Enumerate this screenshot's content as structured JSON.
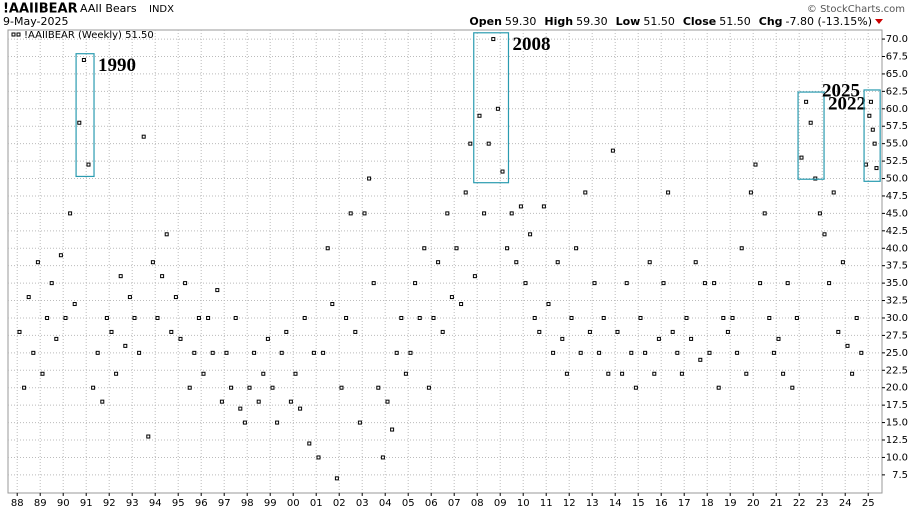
{
  "header": {
    "symbol": "!AAIIBEAR",
    "name": "AAII Bears",
    "exchange": "INDX",
    "date": "9-May-2025",
    "copyright": "© StockCharts.com",
    "quote": [
      {
        "label": "Open",
        "value": "59.30"
      },
      {
        "label": "High",
        "value": "59.30"
      },
      {
        "label": "Low",
        "value": "51.50"
      },
      {
        "label": "Close",
        "value": "51.50"
      },
      {
        "label": "Chg",
        "value": "-7.80 (-13.15%)"
      }
    ]
  },
  "chart_data": {
    "type": "scatter",
    "x": [
      1988.1,
      1988.3,
      1988.5,
      1988.7,
      1988.9,
      1989.1,
      1989.3,
      1989.5,
      1989.7,
      1989.9,
      1990.1,
      1990.3,
      1990.5,
      1990.7,
      1990.9,
      1991.1,
      1991.3,
      1991.5,
      1991.7,
      1991.9,
      1992.1,
      1992.3,
      1992.5,
      1992.7,
      1992.9,
      1993.1,
      1993.3,
      1993.5,
      1993.7,
      1993.9,
      1994.1,
      1994.3,
      1994.5,
      1994.7,
      1994.9,
      1995.1,
      1995.3,
      1995.5,
      1995.7,
      1995.9,
      1996.1,
      1996.3,
      1996.5,
      1996.7,
      1996.9,
      1997.1,
      1997.3,
      1997.5,
      1997.7,
      1997.9,
      1998.1,
      1998.3,
      1998.5,
      1998.7,
      1998.9,
      1999.1,
      1999.3,
      1999.5,
      1999.7,
      1999.9,
      2000.1,
      2000.3,
      2000.5,
      2000.7,
      2000.9,
      2001.1,
      2001.3,
      2001.5,
      2001.7,
      2001.9,
      2002.1,
      2002.3,
      2002.5,
      2002.7,
      2002.9,
      2003.1,
      2003.3,
      2003.5,
      2003.7,
      2003.9,
      2004.1,
      2004.3,
      2004.5,
      2004.7,
      2004.9,
      2005.1,
      2005.3,
      2005.5,
      2005.7,
      2005.9,
      2006.1,
      2006.3,
      2006.5,
      2006.7,
      2006.9,
      2007.1,
      2007.3,
      2007.5,
      2007.7,
      2007.9,
      2008.1,
      2008.3,
      2008.5,
      2008.7,
      2008.9,
      2009.1,
      2009.3,
      2009.5,
      2009.7,
      2009.9,
      2010.1,
      2010.3,
      2010.5,
      2010.7,
      2010.9,
      2011.1,
      2011.3,
      2011.5,
      2011.7,
      2011.9,
      2012.1,
      2012.3,
      2012.5,
      2012.7,
      2012.9,
      2013.1,
      2013.3,
      2013.5,
      2013.7,
      2013.9,
      2014.1,
      2014.3,
      2014.5,
      2014.7,
      2014.9,
      2015.1,
      2015.3,
      2015.5,
      2015.7,
      2015.9,
      2016.1,
      2016.3,
      2016.5,
      2016.7,
      2016.9,
      2017.1,
      2017.3,
      2017.5,
      2017.7,
      2017.9,
      2018.1,
      2018.3,
      2018.5,
      2018.7,
      2018.9,
      2019.1,
      2019.3,
      2019.5,
      2019.7,
      2019.9,
      2020.1,
      2020.3,
      2020.5,
      2020.7,
      2020.9,
      2021.1,
      2021.3,
      2021.5,
      2021.7,
      2021.9,
      2022.1,
      2022.3,
      2022.5,
      2022.7,
      2022.9,
      2023.1,
      2023.3,
      2023.5,
      2023.7,
      2023.9,
      2024.1,
      2024.3,
      2024.5,
      2024.7,
      2024.9,
      2025.05,
      2025.12,
      2025.2,
      2025.28,
      2025.36
    ],
    "series": [
      {
        "name": "!AAIIBEAR (Weekly) 51.50",
        "color": "#000000",
        "values": [
          28,
          20,
          33,
          25,
          38,
          22,
          30,
          35,
          27,
          39,
          30,
          45,
          32,
          58,
          67,
          52,
          20,
          25,
          18,
          30,
          28,
          22,
          36,
          26,
          33,
          30,
          25,
          56,
          13,
          38,
          30,
          36,
          42,
          28,
          33,
          27,
          35,
          20,
          25,
          30,
          22,
          30,
          25,
          34,
          18,
          25,
          20,
          30,
          17,
          15,
          20,
          25,
          18,
          22,
          27,
          20,
          15,
          25,
          28,
          18,
          22,
          17,
          30,
          12,
          25,
          10,
          25,
          40,
          32,
          7,
          20,
          30,
          45,
          28,
          15,
          45,
          50,
          35,
          20,
          10,
          18,
          14,
          25,
          30,
          22,
          25,
          35,
          30,
          40,
          20,
          30,
          38,
          28,
          45,
          33,
          40,
          32,
          48,
          55,
          36,
          59,
          45,
          55,
          70,
          60,
          51,
          40,
          45,
          38,
          46,
          35,
          42,
          30,
          28,
          46,
          32,
          25,
          38,
          27,
          22,
          30,
          40,
          25,
          48,
          28,
          35,
          25,
          30,
          22,
          54,
          28,
          22,
          35,
          25,
          20,
          30,
          25,
          38,
          22,
          27,
          35,
          48,
          28,
          25,
          22,
          30,
          27,
          38,
          24,
          35,
          25,
          35,
          20,
          30,
          28,
          30,
          25,
          40,
          22,
          48,
          52,
          35,
          45,
          30,
          25,
          27,
          22,
          35,
          20,
          30,
          53,
          61,
          58,
          50,
          45,
          42,
          35,
          48,
          28,
          38,
          26,
          22,
          30,
          25,
          52,
          59,
          61,
          57,
          55,
          51.5
        ]
      }
    ],
    "annotations": [
      {
        "label": "1990",
        "x": [
          1990.56,
          1991.34
        ],
        "y": [
          50.3,
          67.9
        ]
      },
      {
        "label": "2008",
        "x": [
          2007.85,
          2009.36
        ],
        "y": [
          49.4,
          70.9
        ]
      },
      {
        "label": "2022",
        "x": [
          2021.95,
          2023.08
        ],
        "y": [
          49.9,
          62.4
        ]
      },
      {
        "label": "2025",
        "x": [
          2024.82,
          2025.52
        ],
        "y": [
          49.6,
          62.7
        ]
      }
    ],
    "xlim": [
      1987.6,
      2025.6
    ],
    "ylim": [
      4.9,
      71.3
    ],
    "xticks": [
      {
        "value": 1988,
        "label": "88"
      },
      {
        "value": 1989,
        "label": "89"
      },
      {
        "value": 1990,
        "label": "90"
      },
      {
        "value": 1991,
        "label": "91"
      },
      {
        "value": 1992,
        "label": "92"
      },
      {
        "value": 1993,
        "label": "93"
      },
      {
        "value": 1994,
        "label": "94"
      },
      {
        "value": 1995,
        "label": "95"
      },
      {
        "value": 1996,
        "label": "96"
      },
      {
        "value": 1997,
        "label": "97"
      },
      {
        "value": 1998,
        "label": "98"
      },
      {
        "value": 1999,
        "label": "99"
      },
      {
        "value": 2000,
        "label": "00"
      },
      {
        "value": 2001,
        "label": "01"
      },
      {
        "value": 2002,
        "label": "02"
      },
      {
        "value": 2003,
        "label": "03"
      },
      {
        "value": 2004,
        "label": "04"
      },
      {
        "value": 2005,
        "label": "05"
      },
      {
        "value": 2006,
        "label": "06"
      },
      {
        "value": 2007,
        "label": "07"
      },
      {
        "value": 2008,
        "label": "08"
      },
      {
        "value": 2009,
        "label": "09"
      },
      {
        "value": 2010,
        "label": "10"
      },
      {
        "value": 2011,
        "label": "11"
      },
      {
        "value": 2012,
        "label": "12"
      },
      {
        "value": 2013,
        "label": "13"
      },
      {
        "value": 2014,
        "label": "14"
      },
      {
        "value": 2015,
        "label": "15"
      },
      {
        "value": 2016,
        "label": "16"
      },
      {
        "value": 2017,
        "label": "17"
      },
      {
        "value": 2018,
        "label": "18"
      },
      {
        "value": 2019,
        "label": "19"
      },
      {
        "value": 2020,
        "label": "20"
      },
      {
        "value": 2021,
        "label": "21"
      },
      {
        "value": 2022,
        "label": "22"
      },
      {
        "value": 2023,
        "label": "23"
      },
      {
        "value": 2024,
        "label": "24"
      },
      {
        "value": 2025,
        "label": "25"
      }
    ],
    "yticks": [
      7.5,
      {
        "value": 10,
        "label": "10.0"
      },
      12.5,
      {
        "value": 15,
        "label": "15.0"
      },
      17.5,
      {
        "value": 20,
        "label": "20.0"
      },
      22.5,
      {
        "value": 25,
        "label": "25.0"
      },
      27.5,
      {
        "value": 30,
        "label": "30.0"
      },
      32.5,
      {
        "value": 35,
        "label": "35.0"
      },
      37.5,
      {
        "value": 40,
        "label": "40.0"
      },
      42.5,
      {
        "value": 45,
        "label": "45.0"
      },
      47.5,
      {
        "value": 50,
        "label": "50.0"
      },
      52.5,
      {
        "value": 55,
        "label": "55.0"
      },
      57.5,
      {
        "value": 60,
        "label": "60.0"
      },
      62.5,
      {
        "value": 65,
        "label": "65.0"
      },
      67.5,
      {
        "value": 70,
        "label": "70.0"
      }
    ],
    "grid": true,
    "annotation_color": "#2a9bb0"
  }
}
